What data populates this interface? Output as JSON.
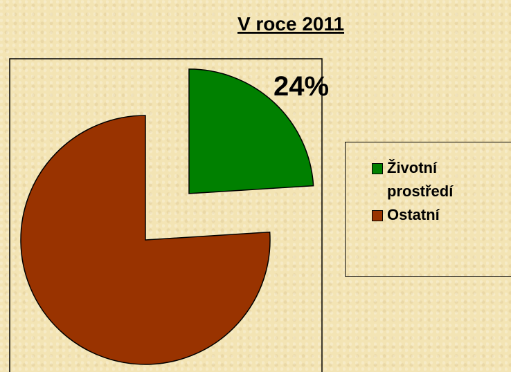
{
  "chart_data": {
    "type": "pie",
    "title": "V roce 2011",
    "categories": [
      "Životní prostředí",
      "Ostatní"
    ],
    "values": [
      24,
      76
    ],
    "value_labels": [
      "24%",
      null
    ],
    "colors": [
      "#008000",
      "#993300"
    ],
    "legend": "right"
  }
}
